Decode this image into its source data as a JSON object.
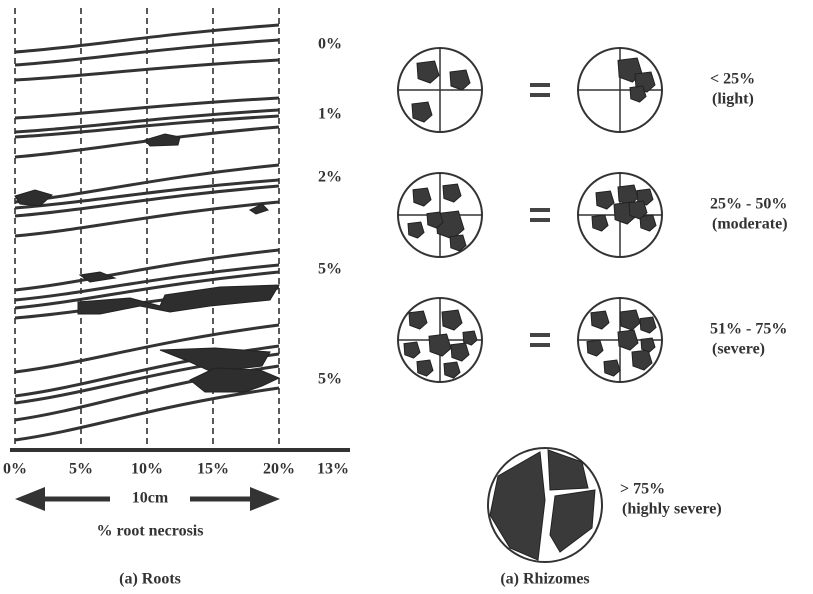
{
  "roots": {
    "row_labels": [
      "0%",
      "1%",
      "2%",
      "5%",
      "5%"
    ],
    "axis_labels": [
      "0%",
      "5%",
      "10%",
      "15%",
      "20%",
      "13%"
    ],
    "scale_label": "10cm",
    "axis_title": "% root necrosis",
    "caption": "(a) Roots"
  },
  "rhizomes": {
    "classes": [
      {
        "range": "< 25%",
        "severity": "(light)"
      },
      {
        "range": "25% - 50%",
        "severity": "(moderate)"
      },
      {
        "range": "51% - 75%",
        "severity": "(severe)"
      },
      {
        "range": "> 75%",
        "severity": "(highly severe)"
      }
    ],
    "caption": "(a) Rhizomes"
  }
}
